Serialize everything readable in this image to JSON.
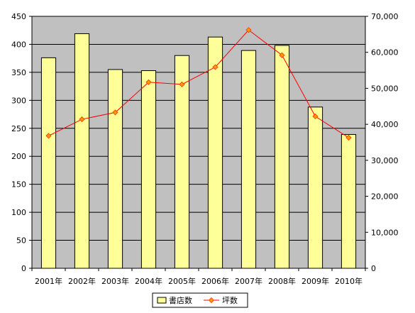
{
  "colors": {
    "plot_background": "#c0c0c0",
    "bar_fill": "#ffff99",
    "bar_stroke": "#000000",
    "line_color": "#ff0000",
    "marker_fill": "#ff9900",
    "marker_stroke": "#ff3300",
    "axis_color": "#000000",
    "gridline_color": "#000000"
  },
  "chart_data": {
    "type": "bar",
    "title": "",
    "xlabel": "",
    "ylabel": "",
    "categories": [
      "2001年",
      "2002年",
      "2003年",
      "2004年",
      "2005年",
      "2006年",
      "2007年",
      "2008年",
      "2009年",
      "2010年"
    ],
    "series": [
      {
        "name": "書店数",
        "type": "bar",
        "axis": "left",
        "values": [
          376,
          419,
          355,
          353,
          380,
          413,
          389,
          398,
          288,
          239
        ]
      },
      {
        "name": "坪数",
        "type": "line",
        "axis": "right",
        "marker": "diamond",
        "values": [
          36800,
          41400,
          43300,
          51700,
          51100,
          55900,
          66200,
          59200,
          42200,
          36300
        ]
      }
    ],
    "left_axis": {
      "min": 0,
      "max": 450,
      "step": 50,
      "tick_labels": [
        "0",
        "50",
        "100",
        "150",
        "200",
        "250",
        "300",
        "350",
        "400",
        "450"
      ]
    },
    "right_axis": {
      "min": 0,
      "max": 70000,
      "step": 10000,
      "tick_labels": [
        "0",
        "10,000",
        "20,000",
        "30,000",
        "40,000",
        "50,000",
        "60,000",
        "70,000"
      ]
    },
    "grid": true,
    "legend_position": "bottom-center"
  }
}
